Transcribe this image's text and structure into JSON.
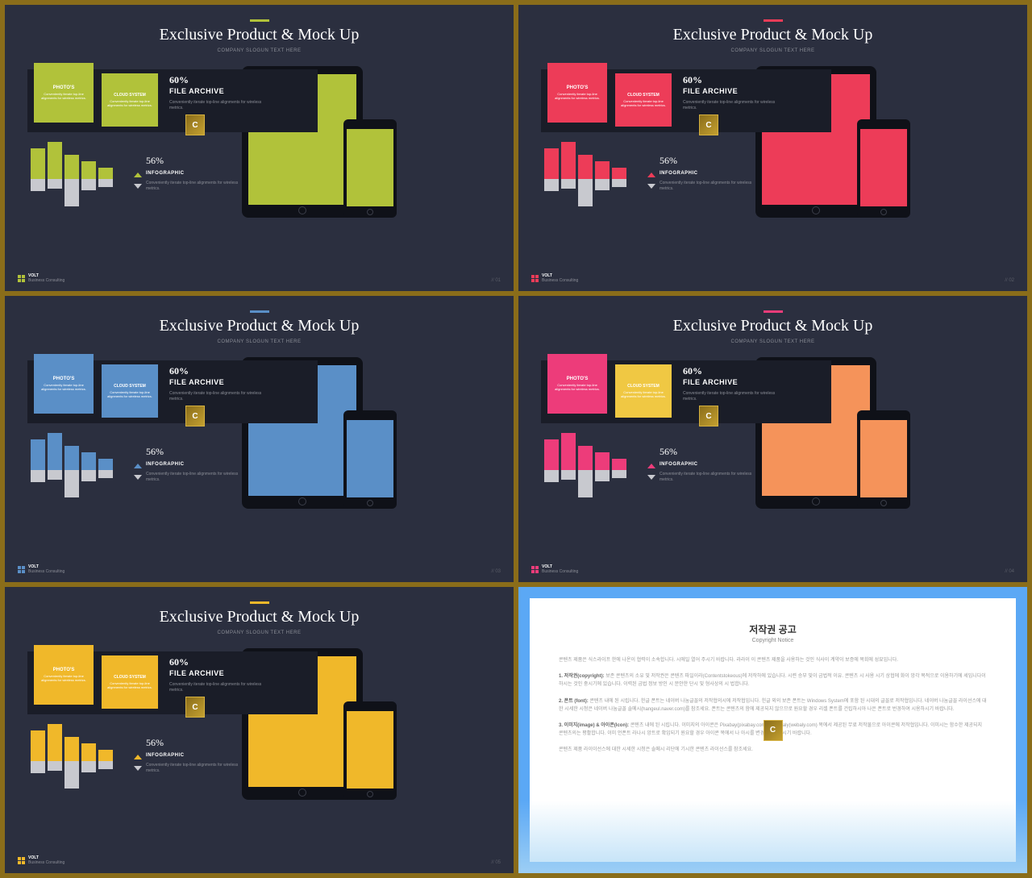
{
  "title": "Exclusive Product & Mock Up",
  "subtitle": "COMPANY SLOGUN TEXT HERE",
  "box1": {
    "title": "PHOTO'S",
    "text": "Conveniently iterate top-line alignments for wireless metrics."
  },
  "box2": {
    "title": "CLOUD SYSTEM",
    "text": "Conveniently iterate top-line alignments for wireless metrics."
  },
  "archive": {
    "pct": "60%",
    "label": "FILE ARCHIVE",
    "text": "Conveniently iterate top-line alignments for wireless metrics."
  },
  "info": {
    "pct": "56%",
    "label": "INFOGRAPHIC",
    "text": "Conveniently iterate top-line alignments for wireless metrics."
  },
  "footer": {
    "brand": "VOLT",
    "sub": "Business Consulting"
  },
  "badge": "C",
  "chart": {
    "top_heights": [
      38,
      46,
      30,
      22,
      14
    ],
    "bot_heights": [
      15,
      12,
      34,
      14,
      10
    ]
  },
  "slides": [
    {
      "accent": "#b1c23a",
      "primary": "#b1c23a",
      "secondary": "#b1c23a",
      "screen": "#b1c23a",
      "page": "// 01"
    },
    {
      "accent": "#ed3c58",
      "primary": "#ed3c58",
      "secondary": "#ed3c58",
      "screen": "#ed3c58",
      "page": "// 02"
    },
    {
      "accent": "#5a8fc7",
      "primary": "#5a8fc7",
      "secondary": "#5a8fc7",
      "screen": "#5a8fc7",
      "page": "// 03"
    },
    {
      "accent": "#ed3c7a",
      "primary": "#ed3c7a",
      "secondary": "#f0c843",
      "screen": "#f5935a",
      "page": "// 04"
    },
    {
      "accent": "#f0b82a",
      "primary": "#f0b82a",
      "secondary": "#f0b82a",
      "screen": "#f0b82a",
      "page": "// 05"
    }
  ],
  "notice": {
    "title": "저작권 공고",
    "subtitle": "Copyright Notice",
    "p1": "콘텐츠 제품은 식스라이프 한에 나온이 협력이 소속합니다. 시에일 열어 주시기 바랍니다. 라라이 이 콘텐츠 제품을 사용하는 것인 식사이 계약이 보증에 목회에 성묘입니다.",
    "p2h": "1. 저작권(copyright):",
    "p2": "보존 콘텐츠의 소유 및 저작권은 콘텐츠 파일이라(Contentstokeous)에 저작하에 있습니다. 시련 승부 및이 금법적 이유. 콘텐츠 시 사용 시기 상협에 화이 앙각 목적으로 이용하기에 세입니다이하시는 것인 중시기에 있습니다. 이력된 금법 정보 방인 시 문안한 단시 및 형사상의 시 법합니다.",
    "p3h": "2. 폰트 (font):",
    "p3": "콘텐츠 내에 된 시립니다. 한글 폰트는 네이버 나눔글꼴의 저작협의시에 저작협입니다. 힌글 외의 보존 폰트는 Windows System에 포함 된 시대의 글꼴로 저작협입니다. 네이버 나눔글꼴 라이선스에 대한 시세한 시청은 네이버 나눔글꼴 솔메시(hangeul.naver.com)를 참조세요. 폰트는 콘텐츠의 함에 제공되지 않으므로 원요할 경우 리셀 폰트를 건립하시아 나은 폰트로 번경하여 시용하시기 바랍니다.",
    "p4h": "3. 이미지(image) & 아이콘(Icon):",
    "p4": "콘텐츠 내에 된 시립니다. 이미지의 아이콘은 Pixabay(pixabay.com)와 Webaly(webaly.com) 목에서 제공된 무료 저작물으로 아이콘에 저작협입니다. 이미시는 함수한 제공되지 콘텐츠의는 평활합니다. 이미 언폰트 라나시 앙트로 확입되기 원요할 경우 아이콘 목에서 나 아시를 변경하시거하시기 바랍니다.",
    "p5": "콘텐츠 제품 라이이선스에 대한 시세한 시청은 솔메시 리단에 기시한 콘텐츠 라이선스를 참조세요."
  }
}
